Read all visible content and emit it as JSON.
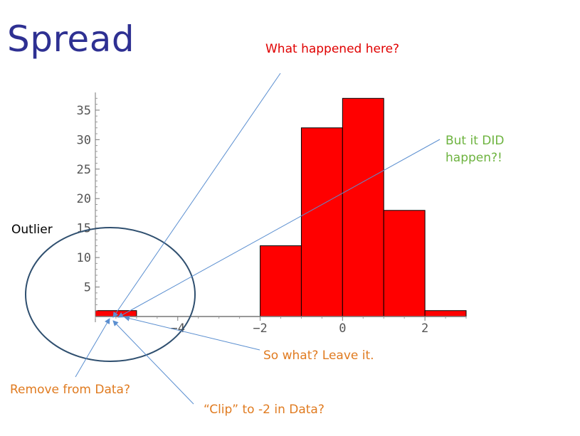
{
  "slide": {
    "title": "Spread"
  },
  "annotations": {
    "what_happened": "What happened here?",
    "but_it_did": "But it DID happen?!",
    "outlier": "Outlier",
    "so_what": "So what?  Leave it.",
    "remove": "Remove from Data?",
    "clip": "“Clip” to -2 in Data?"
  },
  "colors": {
    "title": "#2e3092",
    "bar_fill": "#ff0000",
    "what_happened": "#e00000",
    "but_it_did": "#6db33f",
    "orange_notes": "#e07b20",
    "circle": "#2f4f6f",
    "arrow": "#5b8fd0"
  },
  "chart_data": {
    "type": "bar",
    "title": "",
    "xlabel": "",
    "ylabel": "",
    "bins": [
      {
        "x0": -6,
        "x1": -5,
        "value": 1
      },
      {
        "x0": -5,
        "x1": -4,
        "value": 0
      },
      {
        "x0": -4,
        "x1": -3,
        "value": 0
      },
      {
        "x0": -3,
        "x1": -2,
        "value": 0
      },
      {
        "x0": -2,
        "x1": -1,
        "value": 12
      },
      {
        "x0": -1,
        "x1": 0,
        "value": 32
      },
      {
        "x0": 0,
        "x1": 1,
        "value": 37
      },
      {
        "x0": 1,
        "x1": 2,
        "value": 18
      },
      {
        "x0": 2,
        "x1": 3,
        "value": 1
      }
    ],
    "xlim": [
      -6,
      3
    ],
    "ylim": [
      0,
      38
    ],
    "xticks": [
      -4,
      -2,
      0,
      2
    ],
    "xtick_labels": [
      "−4",
      "−2",
      "0",
      "2"
    ],
    "yticks": [
      5,
      10,
      15,
      20,
      25,
      30,
      35
    ],
    "ytick_labels": [
      "5",
      "10",
      "15",
      "20",
      "25",
      "30",
      "35"
    ],
    "grid": false,
    "legend": "none"
  }
}
